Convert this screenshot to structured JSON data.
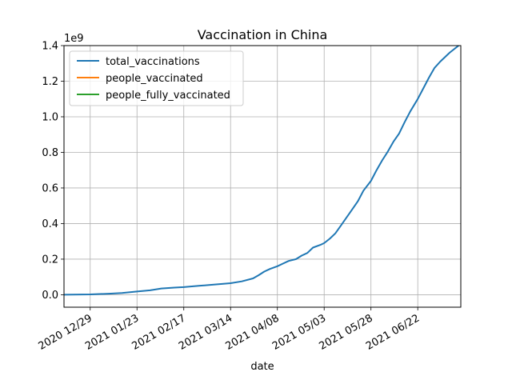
{
  "chart_data": {
    "type": "line",
    "title": "Vaccination in China",
    "xlabel": "date",
    "ylabel": "",
    "y_offset_label": "1e9",
    "grid": true,
    "legend_position": "upper-left",
    "xlim": [
      "2020-12-15",
      "2021-07-15"
    ],
    "ylim": [
      -0.07,
      1.4
    ],
    "x_ticks": [
      "2020-12-29",
      "2021-01-23",
      "2021-02-17",
      "2021-03-14",
      "2021-04-08",
      "2021-05-03",
      "2021-05-28",
      "2021-06-22"
    ],
    "x_tick_labels": [
      "2020 12/29",
      "2021 01/23",
      "2021 02/17",
      "2021 03/14",
      "2021 04/08",
      "2021 05/03",
      "2021 05/28",
      "2021 06/22"
    ],
    "y_ticks": [
      0.0,
      0.2,
      0.4,
      0.6,
      0.8,
      1.0,
      1.2,
      1.4
    ],
    "y_tick_labels": [
      "0.0",
      "0.2",
      "0.4",
      "0.6",
      "0.8",
      "1.0",
      "1.2",
      "1.4"
    ],
    "series": [
      {
        "name": "total_vaccinations",
        "color": "#1f77b4",
        "x": [
          "2020-12-15",
          "2020-12-29",
          "2021-01-08",
          "2021-01-15",
          "2021-01-23",
          "2021-01-30",
          "2021-02-05",
          "2021-02-12",
          "2021-02-17",
          "2021-02-25",
          "2021-03-05",
          "2021-03-14",
          "2021-03-20",
          "2021-03-26",
          "2021-03-29",
          "2021-04-01",
          "2021-04-04",
          "2021-04-08",
          "2021-04-11",
          "2021-04-14",
          "2021-04-18",
          "2021-04-21",
          "2021-04-24",
          "2021-04-27",
          "2021-05-01",
          "2021-05-03",
          "2021-05-06",
          "2021-05-09",
          "2021-05-12",
          "2021-05-15",
          "2021-05-18",
          "2021-05-21",
          "2021-05-24",
          "2021-05-28",
          "2021-05-31",
          "2021-06-03",
          "2021-06-06",
          "2021-06-09",
          "2021-06-12",
          "2021-06-15",
          "2021-06-18",
          "2021-06-22",
          "2021-06-25",
          "2021-06-28",
          "2021-07-01",
          "2021-07-04",
          "2021-07-06",
          "2021-07-09",
          "2021-07-15"
        ],
        "y": [
          0.0,
          0.002,
          0.006,
          0.01,
          0.018,
          0.025,
          0.035,
          0.04,
          0.043,
          0.05,
          0.057,
          0.065,
          0.075,
          0.092,
          0.11,
          0.13,
          0.145,
          0.16,
          0.175,
          0.19,
          0.2,
          0.22,
          0.235,
          0.265,
          0.28,
          0.29,
          0.315,
          0.345,
          0.39,
          0.435,
          0.48,
          0.525,
          0.585,
          0.64,
          0.7,
          0.755,
          0.805,
          0.86,
          0.905,
          0.97,
          1.03,
          1.1,
          1.16,
          1.22,
          1.275,
          1.31,
          1.33,
          1.36,
          1.41
        ]
      },
      {
        "name": "people_vaccinated",
        "color": "#ff7f0e",
        "x": [],
        "y": []
      },
      {
        "name": "people_fully_vaccinated",
        "color": "#2ca02c",
        "x": [],
        "y": []
      }
    ]
  }
}
